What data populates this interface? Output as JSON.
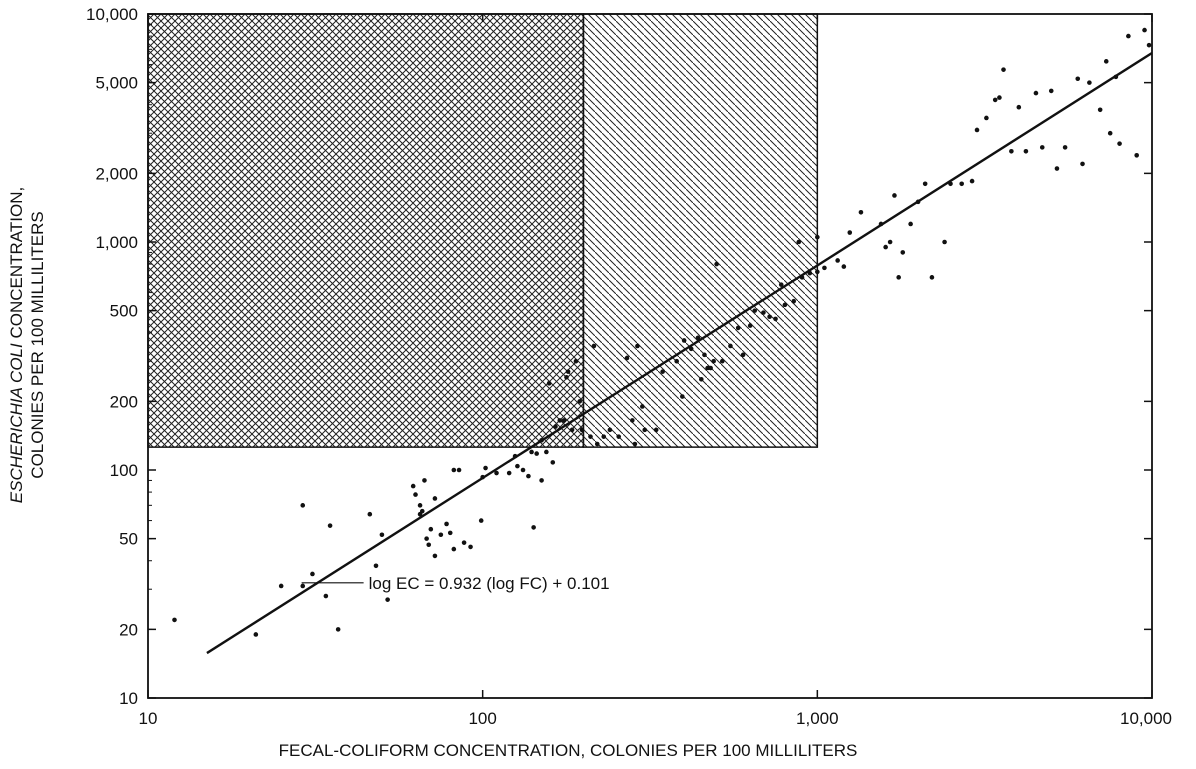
{
  "chart_data": {
    "type": "scatter",
    "x_scale": "log",
    "y_scale": "log",
    "xlim": [
      10,
      10000
    ],
    "ylim": [
      10,
      10000
    ],
    "grid": false,
    "legend": "none",
    "xlabel": "FECAL-COLIFORM CONCENTRATION, COLONIES PER 100 MILLILITERS",
    "ylabel_italic": "ESCHERICHIA COLI",
    "ylabel_rest": " CONCENTRATION,",
    "ylabel_line2": "COLONIES PER 100 MILLILITERS",
    "x_ticks": [
      {
        "value": 10,
        "label": "10"
      },
      {
        "value": 100,
        "label": "100"
      },
      {
        "value": 1000,
        "label": "1,000"
      },
      {
        "value": 10000,
        "label": "10,000"
      }
    ],
    "y_ticks": [
      {
        "value": 10,
        "label": "10"
      },
      {
        "value": 20,
        "label": "20"
      },
      {
        "value": 50,
        "label": "50"
      },
      {
        "value": 100,
        "label": "100"
      },
      {
        "value": 200,
        "label": "200"
      },
      {
        "value": 500,
        "label": "500"
      },
      {
        "value": 1000,
        "label": "1,000"
      },
      {
        "value": 2000,
        "label": "2,000"
      },
      {
        "value": 5000,
        "label": "5,000"
      },
      {
        "value": 10000,
        "label": "10,000"
      }
    ],
    "regions": [
      {
        "pattern": "crosshatch",
        "x": [
          10,
          200
        ],
        "y": [
          126,
          10000
        ]
      },
      {
        "pattern": "diagonal",
        "x": [
          200,
          1000
        ],
        "y": [
          126,
          10000
        ]
      }
    ],
    "regression": {
      "slope": 0.932,
      "intercept": 0.101,
      "x_range": [
        15,
        10000
      ]
    },
    "annotation": {
      "text": "log EC = 0.932 (log FC) + 0.101",
      "x": 45,
      "y": 32
    },
    "points": [
      [
        12,
        22
      ],
      [
        21,
        19
      ],
      [
        25,
        31
      ],
      [
        29,
        31
      ],
      [
        31,
        35
      ],
      [
        34,
        28
      ],
      [
        37,
        20
      ],
      [
        29,
        70
      ],
      [
        35,
        57
      ],
      [
        46,
        64
      ],
      [
        48,
        38
      ],
      [
        50,
        52
      ],
      [
        52,
        27
      ],
      [
        62,
        85
      ],
      [
        63,
        78
      ],
      [
        65,
        64
      ],
      [
        66,
        66
      ],
      [
        65,
        70
      ],
      [
        67,
        90
      ],
      [
        68,
        50
      ],
      [
        69,
        47
      ],
      [
        70,
        55
      ],
      [
        72,
        42
      ],
      [
        72,
        75
      ],
      [
        75,
        52
      ],
      [
        78,
        58
      ],
      [
        80,
        53
      ],
      [
        82,
        45
      ],
      [
        82,
        100
      ],
      [
        85,
        100
      ],
      [
        88,
        48
      ],
      [
        92,
        46
      ],
      [
        99,
        60
      ],
      [
        100,
        93
      ],
      [
        102,
        102
      ],
      [
        110,
        97
      ],
      [
        120,
        97
      ],
      [
        125,
        115
      ],
      [
        127,
        104
      ],
      [
        132,
        100
      ],
      [
        137,
        94
      ],
      [
        140,
        120
      ],
      [
        142,
        56
      ],
      [
        145,
        118
      ],
      [
        150,
        135
      ],
      [
        150,
        90
      ],
      [
        155,
        120
      ],
      [
        158,
        240
      ],
      [
        162,
        108
      ],
      [
        165,
        155
      ],
      [
        170,
        165
      ],
      [
        175,
        165
      ],
      [
        178,
        255
      ],
      [
        180,
        270
      ],
      [
        185,
        150
      ],
      [
        190,
        300
      ],
      [
        195,
        200
      ],
      [
        198,
        150
      ],
      [
        210,
        140
      ],
      [
        215,
        350
      ],
      [
        220,
        130
      ],
      [
        230,
        140
      ],
      [
        240,
        150
      ],
      [
        255,
        140
      ],
      [
        270,
        310
      ],
      [
        280,
        165
      ],
      [
        285,
        130
      ],
      [
        290,
        350
      ],
      [
        300,
        190
      ],
      [
        305,
        150
      ],
      [
        330,
        150
      ],
      [
        345,
        270
      ],
      [
        380,
        300
      ],
      [
        395,
        210
      ],
      [
        400,
        370
      ],
      [
        420,
        340
      ],
      [
        440,
        380
      ],
      [
        450,
        250
      ],
      [
        460,
        320
      ],
      [
        470,
        280
      ],
      [
        480,
        280
      ],
      [
        490,
        300
      ],
      [
        500,
        800
      ],
      [
        520,
        300
      ],
      [
        550,
        350
      ],
      [
        580,
        420
      ],
      [
        600,
        320
      ],
      [
        630,
        430
      ],
      [
        650,
        500
      ],
      [
        690,
        490
      ],
      [
        720,
        470
      ],
      [
        750,
        460
      ],
      [
        780,
        650
      ],
      [
        800,
        530
      ],
      [
        850,
        550
      ],
      [
        880,
        1000
      ],
      [
        900,
        700
      ],
      [
        950,
        730
      ],
      [
        1000,
        740
      ],
      [
        1050,
        770
      ],
      [
        1000,
        1050
      ],
      [
        1150,
        830
      ],
      [
        1200,
        780
      ],
      [
        1250,
        1100
      ],
      [
        1350,
        1350
      ],
      [
        1550,
        1200
      ],
      [
        1600,
        950
      ],
      [
        1650,
        1000
      ],
      [
        1700,
        1600
      ],
      [
        1750,
        700
      ],
      [
        1800,
        900
      ],
      [
        1900,
        1200
      ],
      [
        2000,
        1500
      ],
      [
        2100,
        1800
      ],
      [
        2200,
        700
      ],
      [
        2400,
        1000
      ],
      [
        2500,
        1800
      ],
      [
        2700,
        1800
      ],
      [
        2900,
        1850
      ],
      [
        3000,
        3100
      ],
      [
        3200,
        3500
      ],
      [
        3400,
        4200
      ],
      [
        3500,
        4300
      ],
      [
        3600,
        5700
      ],
      [
        3800,
        2500
      ],
      [
        4000,
        3900
      ],
      [
        4200,
        2500
      ],
      [
        4500,
        4500
      ],
      [
        4700,
        2600
      ],
      [
        5000,
        4600
      ],
      [
        5200,
        2100
      ],
      [
        5500,
        2600
      ],
      [
        6000,
        5200
      ],
      [
        6200,
        2200
      ],
      [
        6500,
        5000
      ],
      [
        7000,
        3800
      ],
      [
        7300,
        6200
      ],
      [
        7500,
        3000
      ],
      [
        7800,
        5300
      ],
      [
        8000,
        2700
      ],
      [
        8500,
        8000
      ],
      [
        9000,
        2400
      ],
      [
        9500,
        8500
      ],
      [
        9800,
        7300
      ]
    ]
  }
}
